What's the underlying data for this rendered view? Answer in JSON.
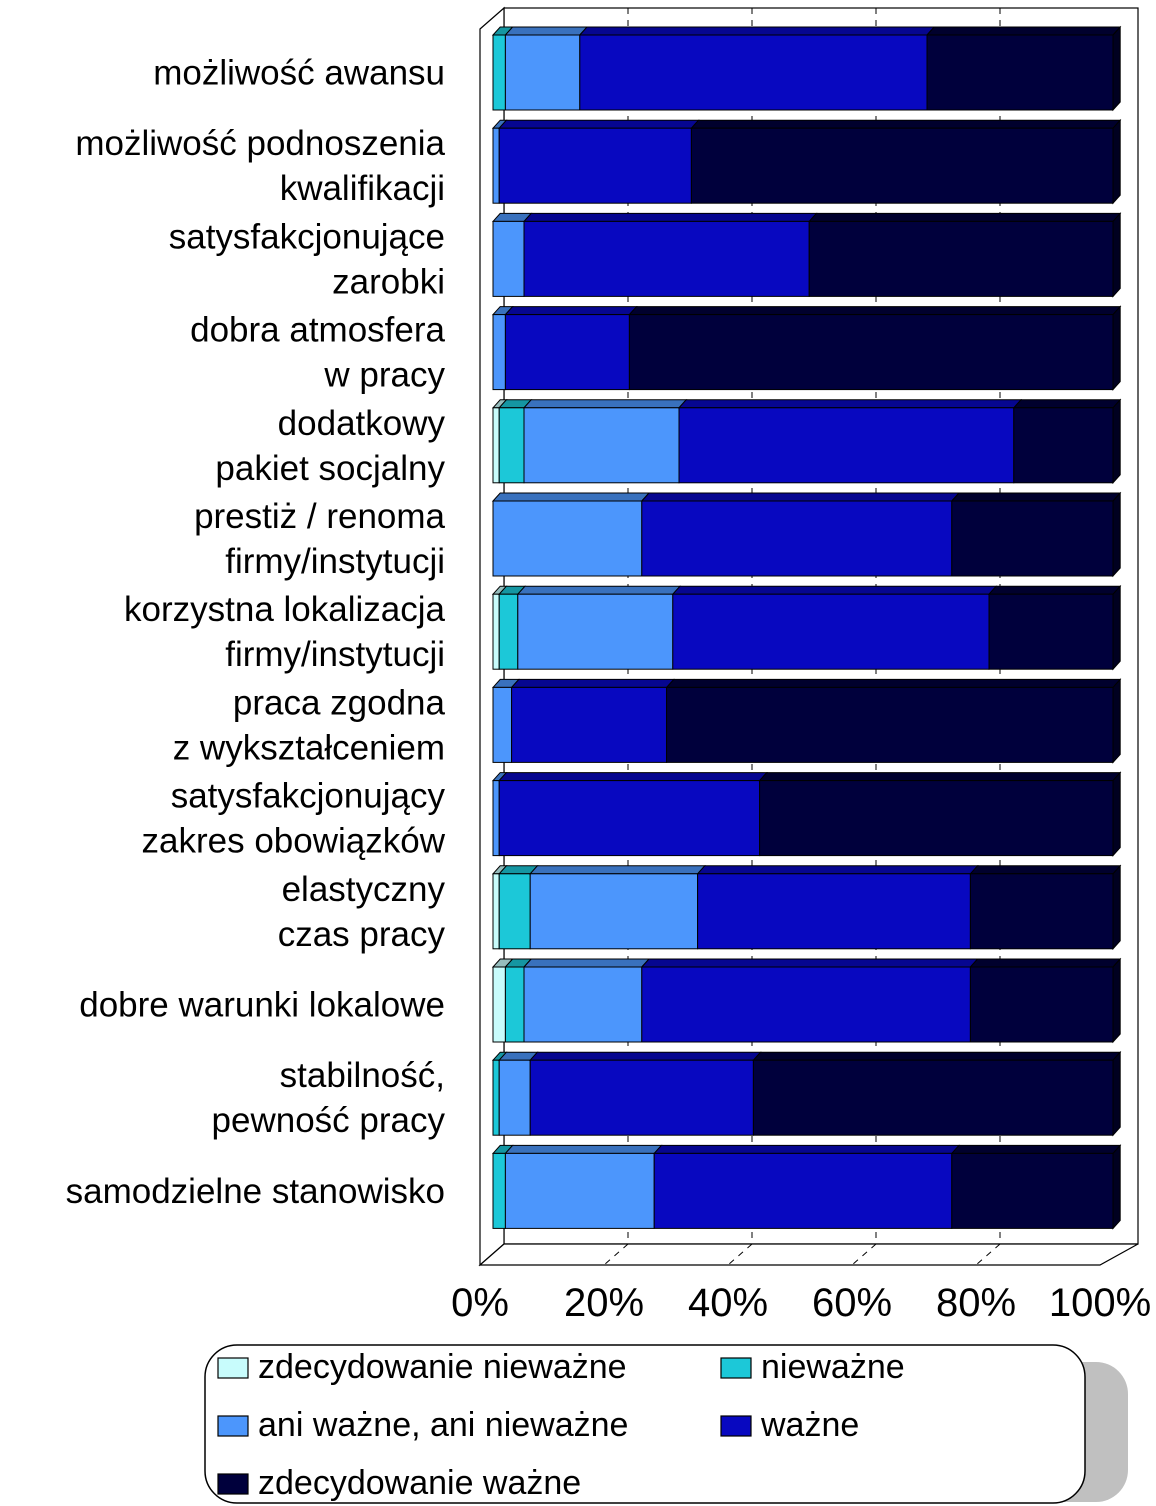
{
  "chart_data": {
    "type": "bar",
    "orientation": "horizontal",
    "stacked": "percent",
    "categories": [
      [
        "możliwość awansu"
      ],
      [
        "możliwość podnoszenia",
        "kwalifikacji"
      ],
      [
        "satysfakcjonujące",
        "zarobki"
      ],
      [
        "dobra atmosfera",
        "w pracy"
      ],
      [
        "dodatkowy",
        "pakiet socjalny"
      ],
      [
        "prestiż / renoma",
        "firmy/instytucji"
      ],
      [
        "korzystna lokalizacja",
        "firmy/instytucji"
      ],
      [
        "praca zgodna",
        "z wykształceniem"
      ],
      [
        "satysfakcjonujący",
        "zakres obowiązków"
      ],
      [
        "elastyczny",
        "czas pracy"
      ],
      [
        "dobre warunki lokalowe"
      ],
      [
        "stabilność,",
        "pewność pracy"
      ],
      [
        "samodzielne stanowisko"
      ]
    ],
    "series": [
      {
        "name": "zdecydowanie nieważne",
        "color": "#c8fcfc",
        "values": [
          0,
          0,
          0,
          0,
          1,
          0,
          1,
          0,
          0,
          1,
          2,
          0,
          0
        ]
      },
      {
        "name": "nieważne",
        "color": "#1cc8d8",
        "values": [
          2,
          0,
          0,
          0,
          4,
          0,
          3,
          0,
          0,
          5,
          3,
          1,
          2
        ]
      },
      {
        "name": "ani ważne, ani nieważne",
        "color": "#4c96fc",
        "values": [
          12,
          1,
          5,
          2,
          25,
          24,
          25,
          3,
          1,
          27,
          19,
          5,
          24
        ]
      },
      {
        "name": "ważne",
        "color": "#0808c0",
        "values": [
          56,
          31,
          46,
          20,
          54,
          50,
          51,
          25,
          42,
          44,
          53,
          36,
          48
        ]
      },
      {
        "name": "zdecydowanie ważne",
        "color": "#00003c",
        "values": [
          30,
          68,
          49,
          78,
          16,
          26,
          20,
          72,
          57,
          23,
          23,
          58,
          26
        ]
      }
    ],
    "xaxis": {
      "ticks": [
        "0%",
        "20%",
        "40%",
        "60%",
        "80%",
        "100%"
      ],
      "min": 0,
      "max": 100
    },
    "grid": "vertical dashed",
    "three_d": true,
    "legend": {
      "position": "bottom",
      "entries": [
        "zdecydowanie nieważne",
        "nieważne",
        "ani ważne, ani nieważne",
        "ważne",
        "zdecydowanie ważne"
      ]
    }
  }
}
